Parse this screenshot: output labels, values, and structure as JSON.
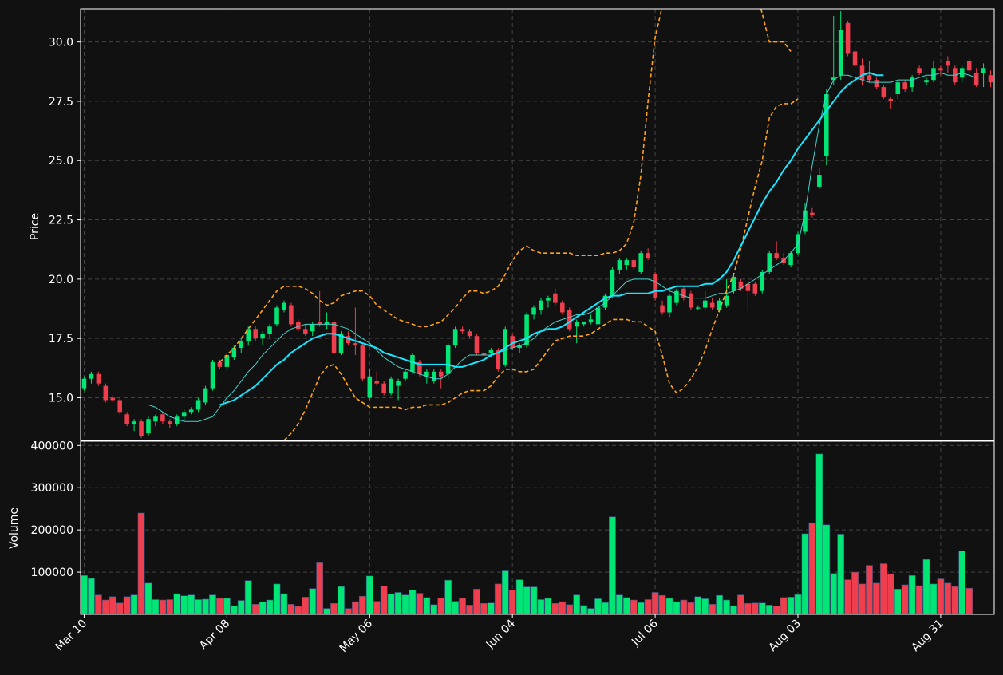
{
  "chart_data": [
    {
      "type": "candlestick",
      "ylabel": "Price",
      "ylim": [
        13.2,
        31.4
      ],
      "yticks": [
        "15.0",
        "17.5",
        "20.0",
        "22.5",
        "25.0",
        "27.5",
        "30.0"
      ],
      "grid": true,
      "ohlc": [
        [
          15.4,
          15.9,
          15.3,
          15.8
        ],
        [
          15.8,
          16.1,
          15.6,
          16.0
        ],
        [
          16.0,
          16.1,
          15.5,
          15.6
        ],
        [
          15.5,
          15.6,
          14.8,
          14.9
        ],
        [
          15.0,
          15.1,
          14.8,
          14.9
        ],
        [
          14.9,
          15.0,
          14.3,
          14.4
        ],
        [
          14.3,
          14.4,
          13.8,
          13.9
        ],
        [
          13.9,
          14.1,
          13.6,
          14.0
        ],
        [
          14.0,
          14.1,
          13.3,
          13.4
        ],
        [
          13.5,
          14.2,
          13.4,
          14.1
        ],
        [
          14.0,
          14.3,
          13.8,
          14.2
        ],
        [
          14.3,
          14.4,
          13.9,
          14.0
        ],
        [
          14.0,
          14.1,
          13.7,
          13.9
        ],
        [
          13.9,
          14.3,
          13.8,
          14.2
        ],
        [
          14.2,
          14.5,
          14.0,
          14.4
        ],
        [
          14.4,
          14.6,
          14.3,
          14.5
        ],
        [
          14.5,
          15.0,
          14.4,
          14.9
        ],
        [
          14.8,
          15.5,
          14.7,
          15.4
        ],
        [
          15.4,
          16.6,
          15.3,
          16.5
        ],
        [
          16.5,
          16.6,
          16.2,
          16.3
        ],
        [
          16.3,
          16.9,
          16.2,
          16.8
        ],
        [
          16.7,
          17.2,
          16.6,
          17.1
        ],
        [
          17.1,
          17.5,
          16.9,
          17.4
        ],
        [
          17.4,
          18.0,
          17.2,
          17.9
        ],
        [
          17.9,
          18.0,
          17.4,
          17.5
        ],
        [
          17.5,
          17.8,
          17.2,
          17.7
        ],
        [
          17.7,
          18.1,
          17.5,
          18.0
        ],
        [
          18.1,
          18.9,
          18.0,
          18.8
        ],
        [
          18.7,
          19.1,
          18.6,
          19.0
        ],
        [
          18.9,
          19.0,
          18.0,
          18.1
        ],
        [
          18.2,
          18.3,
          17.8,
          17.9
        ],
        [
          17.9,
          18.1,
          17.6,
          17.7
        ],
        [
          17.8,
          18.2,
          17.6,
          18.1
        ],
        [
          18.2,
          19.5,
          18.0,
          18.1
        ],
        [
          18.1,
          18.6,
          17.9,
          18.2
        ],
        [
          18.2,
          18.3,
          16.8,
          16.9
        ],
        [
          16.9,
          17.8,
          16.8,
          17.7
        ],
        [
          17.6,
          17.8,
          17.2,
          17.3
        ],
        [
          17.3,
          18.8,
          16.8,
          17.2
        ],
        [
          17.2,
          17.3,
          15.7,
          15.8
        ],
        [
          15.0,
          16.2,
          14.9,
          15.9
        ],
        [
          15.7,
          16.1,
          15.5,
          15.6
        ],
        [
          15.6,
          15.7,
          15.1,
          15.2
        ],
        [
          15.2,
          15.9,
          15.1,
          15.8
        ],
        [
          15.5,
          15.8,
          14.9,
          15.7
        ],
        [
          15.8,
          16.2,
          15.7,
          16.1
        ],
        [
          16.1,
          16.9,
          16.0,
          16.8
        ],
        [
          16.5,
          16.6,
          15.9,
          16.0
        ],
        [
          15.9,
          16.2,
          15.6,
          16.1
        ],
        [
          15.7,
          16.2,
          15.6,
          16.1
        ],
        [
          16.1,
          16.2,
          15.4,
          15.9
        ],
        [
          16.0,
          17.3,
          15.8,
          17.2
        ],
        [
          17.2,
          18.0,
          17.1,
          17.9
        ],
        [
          17.9,
          18.0,
          17.7,
          17.8
        ],
        [
          17.8,
          17.9,
          17.5,
          17.6
        ],
        [
          17.6,
          17.7,
          16.8,
          16.9
        ],
        [
          16.9,
          17.0,
          16.7,
          16.8
        ],
        [
          16.9,
          17.1,
          16.7,
          17.0
        ],
        [
          17.0,
          17.1,
          16.1,
          16.2
        ],
        [
          16.4,
          18.0,
          16.3,
          17.9
        ],
        [
          17.6,
          17.7,
          17.0,
          17.1
        ],
        [
          17.1,
          17.3,
          16.9,
          17.2
        ],
        [
          17.2,
          18.6,
          17.1,
          18.5
        ],
        [
          18.5,
          18.9,
          18.3,
          18.8
        ],
        [
          18.7,
          19.2,
          18.5,
          19.1
        ],
        [
          19.1,
          19.3,
          18.8,
          19.2
        ],
        [
          19.4,
          19.6,
          18.9,
          19.0
        ],
        [
          19.0,
          19.1,
          18.5,
          18.6
        ],
        [
          18.7,
          18.8,
          17.8,
          17.9
        ],
        [
          18.0,
          18.3,
          17.3,
          18.2
        ],
        [
          18.1,
          18.2,
          18.0,
          18.2
        ],
        [
          18.2,
          18.5,
          18.1,
          18.3
        ],
        [
          18.1,
          18.9,
          18.0,
          18.8
        ],
        [
          18.8,
          19.4,
          18.7,
          19.3
        ],
        [
          19.3,
          20.5,
          19.2,
          20.4
        ],
        [
          20.4,
          20.9,
          20.2,
          20.8
        ],
        [
          20.6,
          20.9,
          20.4,
          20.8
        ],
        [
          20.8,
          20.9,
          20.4,
          20.5
        ],
        [
          20.3,
          21.2,
          20.2,
          21.1
        ],
        [
          21.1,
          21.3,
          20.8,
          20.9
        ],
        [
          20.2,
          20.3,
          19.1,
          19.2
        ],
        [
          18.9,
          19.1,
          18.5,
          18.6
        ],
        [
          18.6,
          19.4,
          18.4,
          19.3
        ],
        [
          19.0,
          19.6,
          18.9,
          19.5
        ],
        [
          19.6,
          19.7,
          19.1,
          19.2
        ],
        [
          19.4,
          19.5,
          18.7,
          18.8
        ],
        [
          18.8,
          18.9,
          18.7,
          18.8
        ],
        [
          18.8,
          19.5,
          18.7,
          19.1
        ],
        [
          19.0,
          19.2,
          18.7,
          18.8
        ],
        [
          18.7,
          19.2,
          18.6,
          19.1
        ],
        [
          18.9,
          20.0,
          18.8,
          19.3
        ],
        [
          19.5,
          20.2,
          19.4,
          20.1
        ],
        [
          19.9,
          20.0,
          19.5,
          19.6
        ],
        [
          19.8,
          19.9,
          18.7,
          19.5
        ],
        [
          19.8,
          19.9,
          19.3,
          19.4
        ],
        [
          19.5,
          20.4,
          19.4,
          20.3
        ],
        [
          20.3,
          21.2,
          20.2,
          21.1
        ],
        [
          21.1,
          21.6,
          20.8,
          20.9
        ],
        [
          20.9,
          21.1,
          20.6,
          20.7
        ],
        [
          20.6,
          21.2,
          20.5,
          21.1
        ],
        [
          21.1,
          22.0,
          21.0,
          21.9
        ],
        [
          22.0,
          23.2,
          21.9,
          22.9
        ],
        [
          22.8,
          23.0,
          22.6,
          22.7
        ],
        [
          23.9,
          24.7,
          23.8,
          24.4
        ],
        [
          25.2,
          28.0,
          24.8,
          27.8
        ],
        [
          28.4,
          31.1,
          28.2,
          28.5
        ],
        [
          28.6,
          31.3,
          28.4,
          30.5
        ],
        [
          30.8,
          30.9,
          29.4,
          29.5
        ],
        [
          29.6,
          30.0,
          28.9,
          29.0
        ],
        [
          29.0,
          29.3,
          28.2,
          28.4
        ],
        [
          28.6,
          29.2,
          28.3,
          28.4
        ],
        [
          28.4,
          28.5,
          28.0,
          28.1
        ],
        [
          28.1,
          28.2,
          27.6,
          27.7
        ],
        [
          27.6,
          27.7,
          27.2,
          27.5
        ],
        [
          27.8,
          28.4,
          27.6,
          28.3
        ],
        [
          28.3,
          28.4,
          27.9,
          28.0
        ],
        [
          28.1,
          28.6,
          27.9,
          28.5
        ],
        [
          28.9,
          29.0,
          28.6,
          28.7
        ],
        [
          28.3,
          28.5,
          28.2,
          28.4
        ],
        [
          28.4,
          29.2,
          28.3,
          28.9
        ],
        [
          28.9,
          29.0,
          28.6,
          28.8
        ],
        [
          29.2,
          29.4,
          28.7,
          29.0
        ],
        [
          28.9,
          29.0,
          28.2,
          28.3
        ],
        [
          28.5,
          29.0,
          28.3,
          28.9
        ],
        [
          29.2,
          29.3,
          28.6,
          28.8
        ],
        [
          28.7,
          28.9,
          28.1,
          28.2
        ],
        [
          28.7,
          29.1,
          28.1,
          28.9
        ],
        [
          28.6,
          28.8,
          28.1,
          28.3
        ]
      ],
      "ma_short": [
        null,
        null,
        null,
        null,
        null,
        null,
        null,
        null,
        null,
        14.7,
        14.6,
        14.4,
        14.2,
        14.1,
        14.0,
        14.0,
        14.0,
        14.1,
        14.2,
        14.6,
        15.0,
        15.3,
        15.7,
        16.1,
        16.4,
        16.8,
        17.1,
        17.4,
        17.7,
        17.9,
        18.0,
        18.1,
        18.1,
        18.1,
        18.1,
        18.1,
        18.0,
        17.9,
        17.7,
        17.5,
        17.3,
        17.0,
        16.7,
        16.5,
        16.3,
        16.2,
        16.1,
        16.0,
        15.9,
        15.8,
        15.8,
        16.0,
        16.3,
        16.6,
        16.8,
        16.8,
        16.8,
        16.8,
        16.9,
        17.0,
        17.1,
        17.2,
        17.3,
        17.5,
        17.8,
        18.0,
        18.2,
        18.3,
        18.4,
        18.5,
        18.5,
        18.6,
        18.8,
        19.0,
        19.3,
        19.6,
        19.9,
        20.0,
        20.0,
        20.0,
        19.9,
        19.7,
        19.5,
        19.4,
        19.3,
        19.2,
        19.2,
        19.2,
        19.3,
        19.4,
        19.4,
        19.5,
        19.6,
        19.8,
        20.0,
        20.2,
        20.4,
        20.6,
        20.8,
        21.1,
        21.5,
        22.8,
        24.8,
        26.5,
        27.8,
        28.4,
        28.6,
        28.6,
        28.5,
        28.4,
        28.3,
        28.3,
        28.3,
        28.3,
        28.4,
        28.4,
        28.4,
        28.5,
        28.6,
        28.6,
        28.7,
        28.6,
        28.6,
        28.7,
        28.6,
        28.5
      ],
      "ma_long": [
        null,
        null,
        null,
        null,
        null,
        null,
        null,
        null,
        null,
        null,
        null,
        null,
        null,
        null,
        null,
        null,
        null,
        null,
        null,
        14.7,
        14.8,
        14.9,
        15.1,
        15.3,
        15.5,
        15.8,
        16.1,
        16.4,
        16.6,
        16.9,
        17.1,
        17.3,
        17.5,
        17.6,
        17.7,
        17.7,
        17.6,
        17.5,
        17.4,
        17.3,
        17.2,
        17.1,
        16.9,
        16.8,
        16.7,
        16.6,
        16.5,
        16.4,
        16.4,
        16.4,
        16.4,
        16.4,
        16.3,
        16.3,
        16.4,
        16.5,
        16.6,
        16.8,
        16.9,
        17.1,
        17.3,
        17.4,
        17.5,
        17.7,
        17.8,
        17.9,
        17.9,
        18.0,
        18.2,
        18.4,
        18.6,
        18.8,
        19.0,
        19.2,
        19.3,
        19.3,
        19.4,
        19.4,
        19.4,
        19.4,
        19.5,
        19.5,
        19.6,
        19.7,
        19.7,
        19.7,
        19.7,
        19.8,
        19.8,
        20.0,
        20.3,
        20.8,
        21.4,
        22.0,
        22.6,
        23.2,
        23.7,
        24.1,
        24.6,
        25.0,
        25.5,
        25.9,
        26.3,
        26.7,
        27.1,
        27.5,
        27.9,
        28.2,
        28.4,
        28.6,
        28.7,
        28.6,
        28.6
      ],
      "bb_upper": [
        null,
        null,
        null,
        null,
        null,
        null,
        null,
        null,
        null,
        null,
        null,
        null,
        null,
        null,
        null,
        null,
        null,
        null,
        null,
        16.5,
        16.8,
        17.1,
        17.5,
        17.9,
        18.3,
        18.7,
        19.1,
        19.5,
        19.7,
        19.7,
        19.7,
        19.6,
        19.4,
        19.1,
        18.9,
        19.0,
        19.3,
        19.4,
        19.5,
        19.5,
        19.3,
        18.9,
        18.7,
        18.5,
        18.3,
        18.2,
        18.1,
        18.0,
        18.0,
        18.1,
        18.2,
        18.5,
        18.8,
        19.2,
        19.5,
        19.5,
        19.4,
        19.5,
        19.7,
        20.2,
        20.8,
        21.2,
        21.4,
        21.2,
        21.1,
        21.1,
        21.1,
        21.1,
        21.1,
        21.0,
        21.0,
        21.0,
        21.0,
        21.1,
        21.1,
        21.2,
        21.5,
        22.4,
        24.4,
        27.5,
        30.2,
        31.5,
        32.6,
        33.5,
        34.3,
        35.1,
        35.8,
        36.2,
        36.4,
        36.5,
        36.2,
        35.8,
        34.9,
        33.6,
        32.3,
        31.2,
        30.0,
        30.0,
        30.0,
        29.6
      ],
      "bb_lower": [
        null,
        null,
        null,
        null,
        null,
        null,
        null,
        null,
        null,
        null,
        null,
        null,
        null,
        null,
        null,
        null,
        null,
        null,
        null,
        12.9,
        12.8,
        12.7,
        12.7,
        12.6,
        12.6,
        12.6,
        12.7,
        12.9,
        13.2,
        13.5,
        13.9,
        14.5,
        15.2,
        15.9,
        16.3,
        16.4,
        16.0,
        15.5,
        15.0,
        14.8,
        14.6,
        14.6,
        14.6,
        14.6,
        14.6,
        14.5,
        14.6,
        14.6,
        14.7,
        14.7,
        14.7,
        14.8,
        15.0,
        15.2,
        15.3,
        15.3,
        15.3,
        15.5,
        15.9,
        16.2,
        16.2,
        16.1,
        16.1,
        16.2,
        16.6,
        17.0,
        17.4,
        17.5,
        17.6,
        17.6,
        17.6,
        17.7,
        17.9,
        18.1,
        18.3,
        18.3,
        18.3,
        18.2,
        18.2,
        18.0,
        17.8,
        16.8,
        15.6,
        15.2,
        15.4,
        15.8,
        16.3,
        17.0,
        17.9,
        18.7,
        19.5,
        20.2,
        21.3,
        22.6,
        23.9,
        25.0,
        26.8,
        27.3,
        27.4,
        27.4,
        27.6
      ]
    },
    {
      "type": "bar",
      "ylabel": "Volume",
      "ylim": [
        0,
        410000
      ],
      "yticks": [
        "100000",
        "200000",
        "300000",
        "400000"
      ],
      "xticks": [
        "Mar 10",
        "Apr 08",
        "May 06",
        "Jun 04",
        "Jul 06",
        "Aug 03",
        "Aug 31"
      ],
      "grid": true,
      "values": [
        92000,
        85000,
        46000,
        34000,
        42000,
        27000,
        42000,
        46000,
        240000,
        74000,
        35000,
        34000,
        35000,
        49000,
        44000,
        46000,
        35000,
        36000,
        46000,
        38000,
        38000,
        20000,
        33000,
        80000,
        24000,
        29000,
        34000,
        72000,
        49000,
        24000,
        19000,
        41000,
        61000,
        124000,
        14000,
        26000,
        66000,
        14000,
        30000,
        43000,
        91000,
        31000,
        67000,
        48000,
        52000,
        46000,
        58000,
        50000,
        40000,
        23000,
        39000,
        81000,
        31000,
        38000,
        22000,
        60000,
        26000,
        27000,
        72000,
        103000,
        58000,
        82000,
        65000,
        65000,
        35000,
        38000,
        26000,
        30000,
        23000,
        46000,
        21000,
        14000,
        37000,
        28000,
        231000,
        46000,
        40000,
        34000,
        28000,
        35000,
        52000,
        45000,
        38000,
        30000,
        34000,
        28000,
        42000,
        37000,
        24000,
        45000,
        34000,
        20000,
        46000,
        26000,
        27000,
        27000,
        22000,
        20000,
        40000,
        41000,
        47000,
        191000,
        217000,
        380000,
        212000,
        97000,
        190000,
        82000,
        100000,
        72000,
        116000,
        74000,
        120000,
        96000,
        60000,
        70000,
        92000,
        68000,
        130000,
        72000,
        84000,
        74000,
        66000,
        150000,
        62000
      ]
    }
  ],
  "colors": {
    "background": "#111111",
    "up": "#00e676",
    "down": "#ef3f4f",
    "ma_short": "#3fd6cc",
    "ma_long": "#18e6ff",
    "bands": "#ffa31a",
    "grid": "#444444",
    "axis": "#ffffff"
  }
}
